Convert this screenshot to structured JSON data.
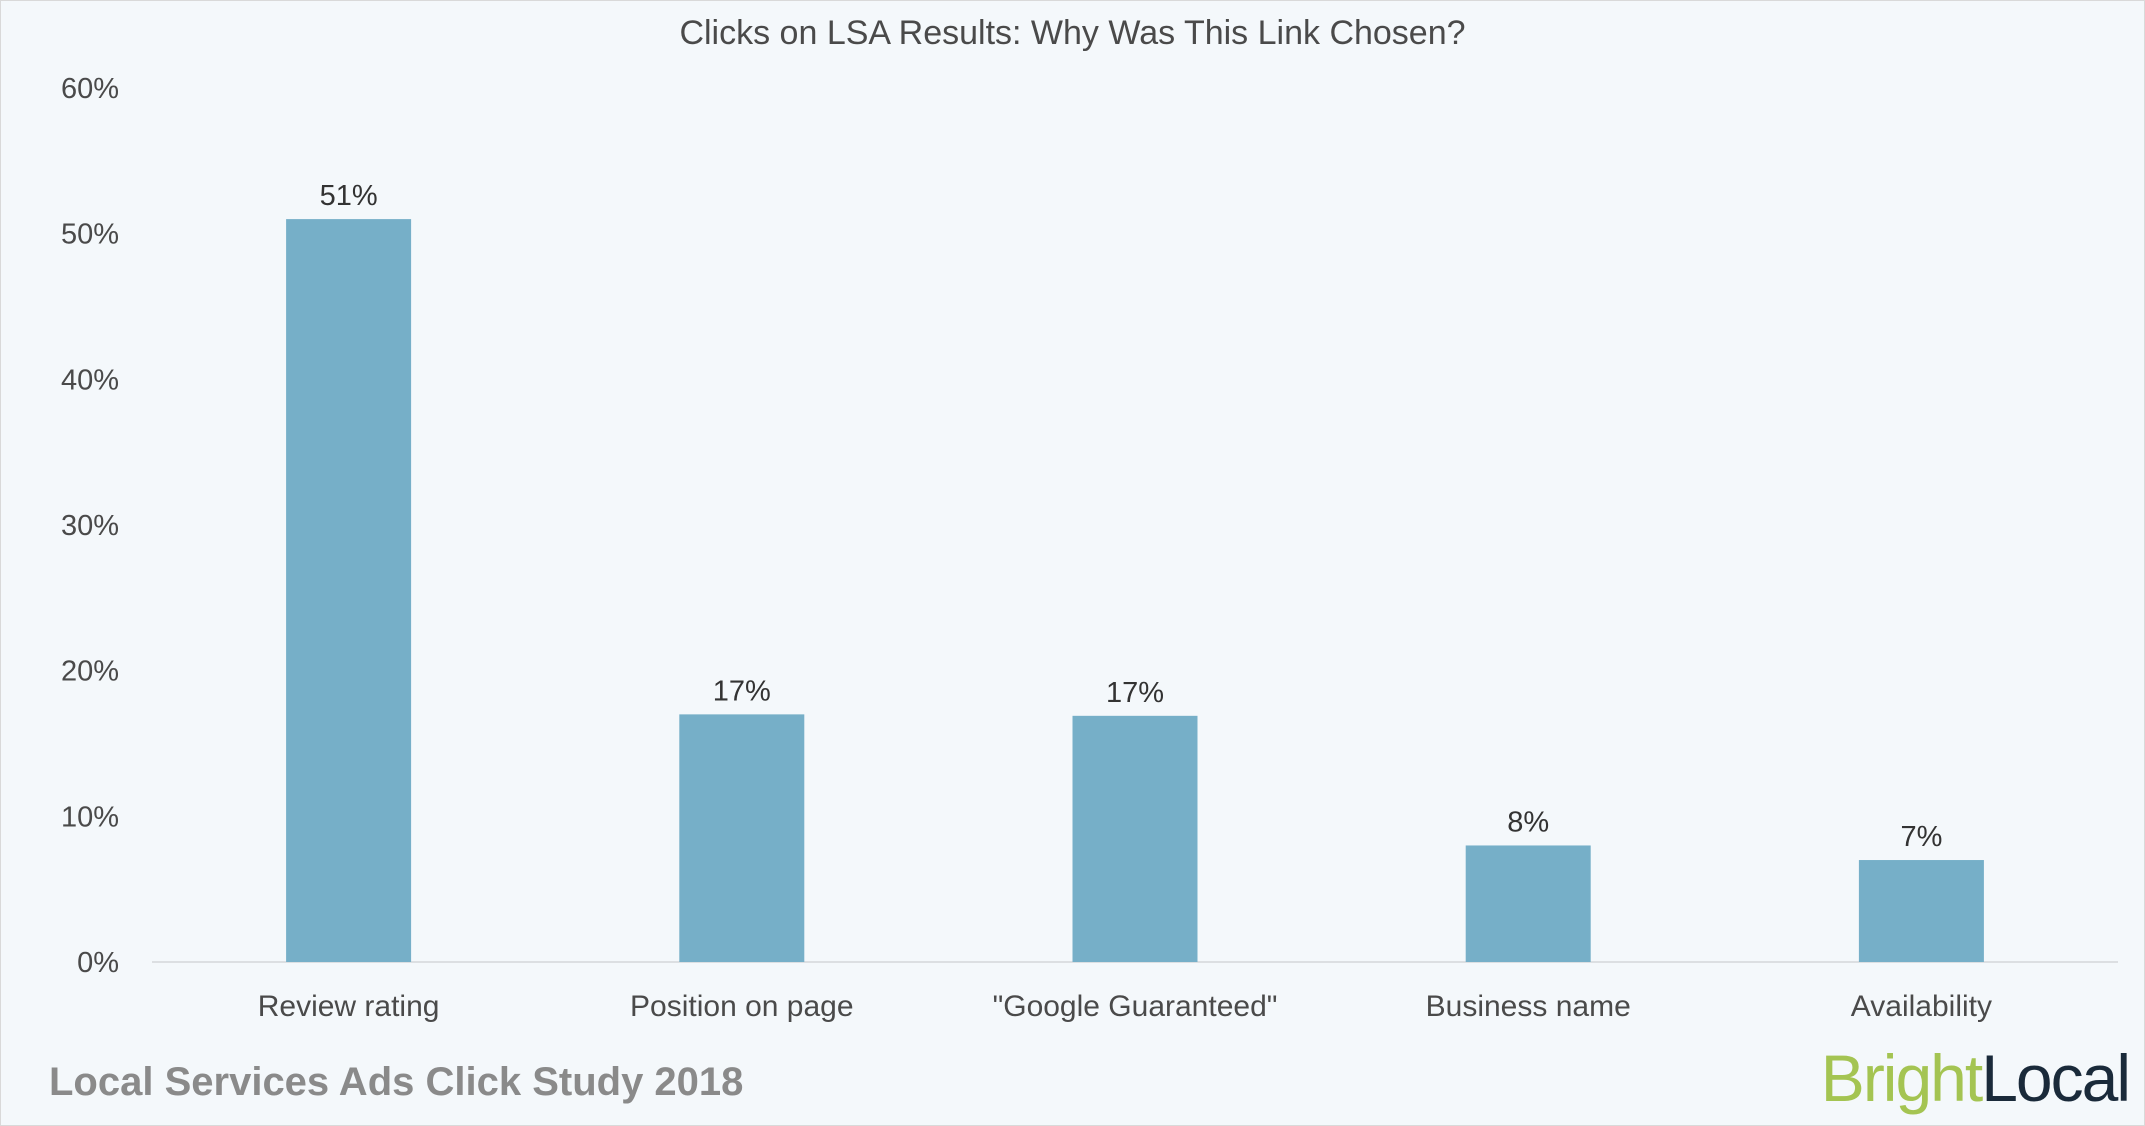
{
  "chart_data": {
    "type": "bar",
    "title": "Clicks on LSA Results: Why Was This Link Chosen?",
    "categories": [
      "Review rating",
      "Position on page",
      "\"Google Guaranteed\"",
      "Business name",
      "Availability"
    ],
    "values": [
      51,
      17,
      16.9,
      8,
      7
    ],
    "data_labels": [
      "51%",
      "17%",
      "17%",
      "8%",
      "7%"
    ],
    "xlabel": "",
    "ylabel": "",
    "ylim": [
      0,
      60
    ],
    "yticks": [
      "0%",
      "10%",
      "20%",
      "30%",
      "40%",
      "50%",
      "60%"
    ],
    "grid": false,
    "bar_color": "#76afc8"
  },
  "footer": "Local Services Ads Click Study 2018",
  "logo": {
    "bright": "Bright",
    "local": "Local",
    "bright_color": "#a4c452",
    "local_color": "#1a2a3a"
  }
}
